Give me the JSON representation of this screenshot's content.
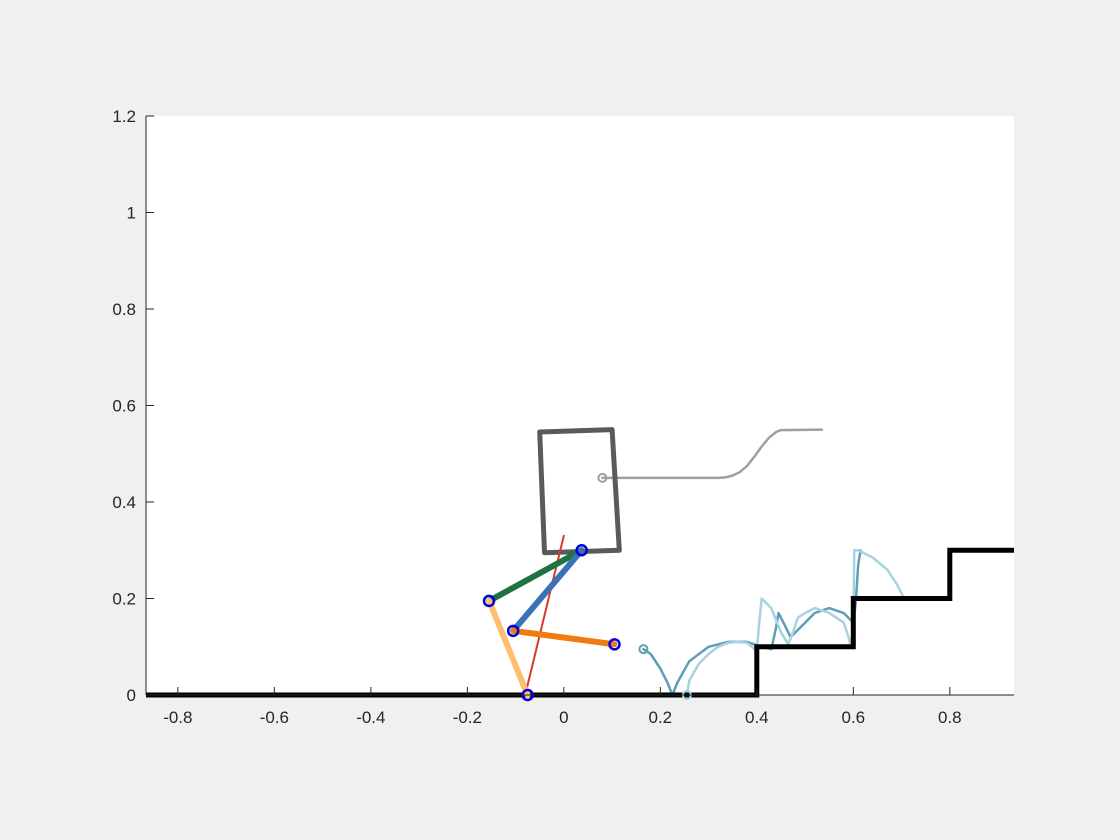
{
  "chart_data": {
    "type": "line",
    "title": "",
    "xlabel": "",
    "ylabel": "",
    "xlim": [
      -0.866,
      0.933
    ],
    "ylim": [
      0,
      1.2
    ],
    "grid": false,
    "x_ticks": [
      -0.8,
      -0.6,
      -0.4,
      -0.2,
      0,
      0.2,
      0.4,
      0.6,
      0.8
    ],
    "x_tick_labels": [
      "-0.8",
      "-0.6",
      "-0.4",
      "-0.2",
      "0",
      "0.2",
      "0.4",
      "0.6",
      "0.8"
    ],
    "y_ticks": [
      0,
      0.2,
      0.4,
      0.6,
      0.8,
      1,
      1.2
    ],
    "y_tick_labels": [
      "0",
      "0.2",
      "0.4",
      "0.6",
      "0.8",
      "1",
      "1.2"
    ],
    "colors": {
      "ground": "#000000",
      "body": "#5a5a5a",
      "body_path": "#a0a0a0",
      "thigh_upper": "#1e7440",
      "shank_upper": "#ffbf70",
      "thigh_lower": "#3b72b5",
      "shank_lower": "#f07c10",
      "force": "#d63a2a",
      "joints": "#0000dd",
      "foot_path_dark": "#5f9fb5",
      "foot_path_light": "#a8d2e2"
    },
    "series": [
      {
        "role": "ground",
        "x": [
          -0.866,
          0.4,
          0.4,
          0.6,
          0.6,
          0.8,
          0.8,
          0.933
        ],
        "y": [
          0,
          0,
          0.1,
          0.1,
          0.2,
          0.2,
          0.3,
          0.3
        ]
      },
      {
        "role": "body",
        "x": [
          -0.05,
          0.1,
          0.115,
          -0.04,
          -0.05
        ],
        "y": [
          0.545,
          0.55,
          0.3,
          0.295,
          0.545
        ]
      },
      {
        "role": "body_path",
        "x": [
          0.08,
          0.32,
          0.335,
          0.35,
          0.365,
          0.38,
          0.395,
          0.41,
          0.425,
          0.44,
          0.45,
          0.535
        ],
        "y": [
          0.45,
          0.45,
          0.451,
          0.455,
          0.462,
          0.475,
          0.494,
          0.515,
          0.533,
          0.545,
          0.549,
          0.55
        ]
      },
      {
        "role": "thigh_upper",
        "x": [
          0.037,
          -0.155
        ],
        "y": [
          0.3,
          0.195
        ]
      },
      {
        "role": "shank_upper",
        "x": [
          -0.155,
          -0.075
        ],
        "y": [
          0.195,
          0.0
        ]
      },
      {
        "role": "thigh_lower",
        "x": [
          0.037,
          -0.105
        ],
        "y": [
          0.3,
          0.133
        ]
      },
      {
        "role": "shank_lower",
        "x": [
          -0.105,
          0.105
        ],
        "y": [
          0.133,
          0.105
        ]
      },
      {
        "role": "force",
        "x": [
          -0.08,
          0.0
        ],
        "y": [
          0.0,
          0.33
        ]
      },
      {
        "role": "joints",
        "x": [
          0.037,
          -0.155,
          -0.105,
          0.105,
          -0.075
        ],
        "y": [
          0.3,
          0.195,
          0.133,
          0.105,
          0.0
        ]
      },
      {
        "role": "foot_path_dark",
        "x": [
          0.165,
          0.18,
          0.2,
          0.215,
          0.225,
          0.235,
          0.26,
          0.3,
          0.34,
          0.38,
          0.41,
          0.43,
          0.44,
          0.445,
          0.455,
          0.47,
          0.49,
          0.52,
          0.55,
          0.58,
          0.6,
          0.605,
          0.61,
          0.615
        ],
        "y": [
          0.095,
          0.085,
          0.055,
          0.025,
          0.0,
          0.025,
          0.07,
          0.1,
          0.11,
          0.11,
          0.1,
          0.095,
          0.14,
          0.17,
          0.15,
          0.12,
          0.14,
          0.17,
          0.18,
          0.17,
          0.15,
          0.19,
          0.27,
          0.3
        ]
      },
      {
        "role": "foot_path_light",
        "x": [
          0.255,
          0.26,
          0.28,
          0.3,
          0.32,
          0.34,
          0.36,
          0.38,
          0.39,
          0.4,
          0.405,
          0.41,
          0.43,
          0.45,
          0.465,
          0.475,
          0.485,
          0.5,
          0.52,
          0.55,
          0.58,
          0.59,
          0.595,
          0.6,
          0.602,
          0.61,
          0.64,
          0.67,
          0.69,
          0.705
        ],
        "y": [
          0.0,
          0.03,
          0.065,
          0.085,
          0.1,
          0.108,
          0.11,
          0.108,
          0.1,
          0.09,
          0.15,
          0.2,
          0.18,
          0.13,
          0.105,
          0.13,
          0.16,
          0.17,
          0.18,
          0.17,
          0.15,
          0.12,
          0.1,
          0.15,
          0.3,
          0.3,
          0.285,
          0.26,
          0.23,
          0.2
        ]
      },
      {
        "role": "path_start_markers",
        "x": [
          0.08,
          0.165,
          0.255
        ],
        "y": [
          0.45,
          0.095,
          0.0
        ]
      }
    ]
  }
}
